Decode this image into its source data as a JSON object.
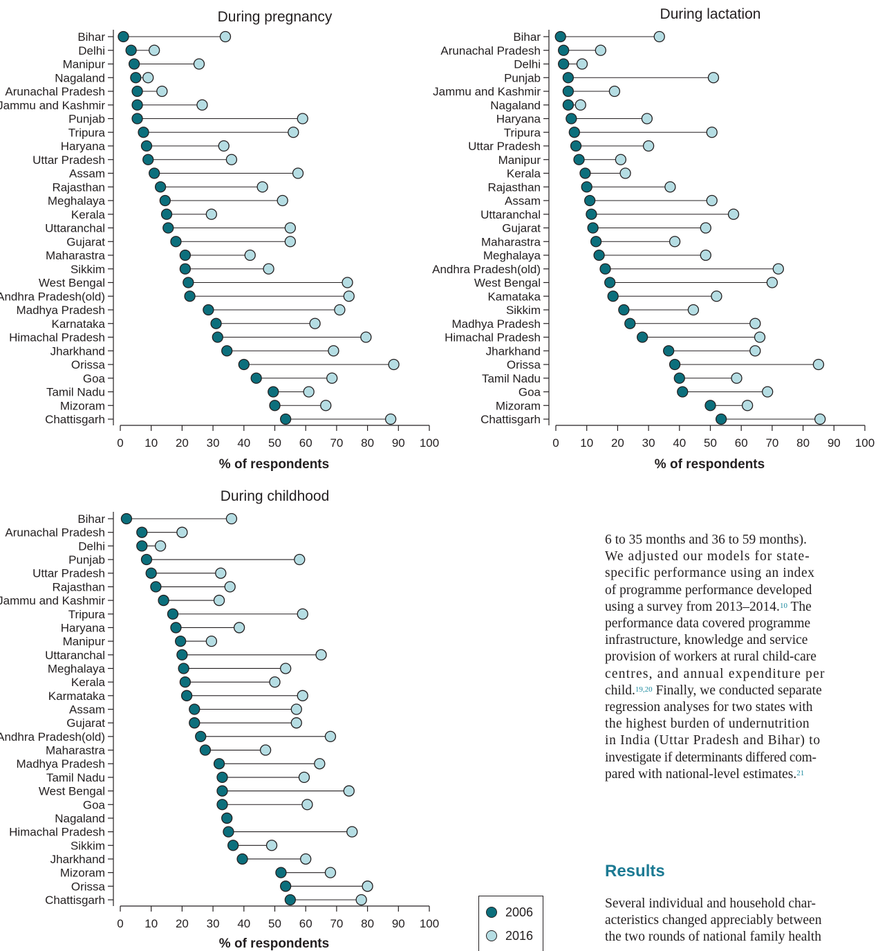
{
  "colors": {
    "y2006": "#0c6f7c",
    "y2016": "#b5dde3",
    "line": "#231f20",
    "heading": "#1c7a93"
  },
  "legend": {
    "items": [
      {
        "label": "2006",
        "color": "#0c6f7c"
      },
      {
        "label": "2016",
        "color": "#b5dde3"
      }
    ]
  },
  "chart_data": [
    {
      "type": "dumbbell",
      "title": "During pregnancy",
      "xlabel": "% of respondents",
      "xlim": [
        0,
        100
      ],
      "xticks": [
        0,
        10,
        20,
        30,
        40,
        50,
        60,
        70,
        80,
        90,
        100
      ],
      "categories": [
        "Bihar",
        "Delhi",
        "Manipur",
        "Nagaland",
        "Arunachal Pradesh",
        "Jammu and Kashmir",
        "Punjab",
        "Tripura",
        "Haryana",
        "Uttar Pradesh",
        "Assam",
        "Rajasthan",
        "Meghalaya",
        "Kerala",
        "Uttaranchal",
        "Gujarat",
        "Maharastra",
        "Sikkim",
        "West Bengal",
        "Andhra Pradesh(old)",
        "Madhya Pradesh",
        "Karnataka",
        "Himachal Pradesh",
        "Jharkhand",
        "Orissa",
        "Goa",
        "Tamil Nadu",
        "Mizoram",
        "Chattisgarh"
      ],
      "series": [
        {
          "name": "2006",
          "values": [
            1,
            3.5,
            4.5,
            5,
            5.5,
            5.5,
            5.5,
            7.5,
            8.5,
            9,
            11,
            13,
            14.5,
            15,
            15.5,
            18,
            21,
            21,
            22,
            22.5,
            28.5,
            31,
            31.5,
            34.5,
            40,
            44,
            49.5,
            50,
            53.5
          ]
        },
        {
          "name": "2016",
          "values": [
            34,
            11,
            25.5,
            9,
            13.5,
            26.5,
            59,
            56,
            33.5,
            36,
            57.5,
            46,
            52.5,
            29.5,
            55,
            55,
            42,
            48,
            73.5,
            74,
            71,
            63,
            79.5,
            69,
            88.5,
            68.5,
            61,
            66.5,
            87.5
          ]
        }
      ]
    },
    {
      "type": "dumbbell",
      "title": "During lactation",
      "xlabel": "% of respondents",
      "xlim": [
        0,
        100
      ],
      "xticks": [
        0,
        10,
        20,
        30,
        40,
        50,
        60,
        70,
        80,
        90,
        100
      ],
      "categories": [
        "Bihar",
        "Arunachal Pradesh",
        "Delhi",
        "Punjab",
        "Jammu and Kashmir",
        "Nagaland",
        "Haryana",
        "Tripura",
        "Uttar Pradesh",
        "Manipur",
        "Kerala",
        "Rajasthan",
        "Assam",
        "Uttaranchal",
        "Gujarat",
        "Maharastra",
        "Meghalaya",
        "Andhra Pradesh(old)",
        "West Bengal",
        "Kamataka",
        "Sikkim",
        "Madhya Pradesh",
        "Himachal Pradesh",
        "Jharkhand",
        "Orissa",
        "Tamil Nadu",
        "Goa",
        "Mizoram",
        "Chattisgarh"
      ],
      "series": [
        {
          "name": "2006",
          "values": [
            1.5,
            2.5,
            2.5,
            4,
            4,
            4,
            5,
            6,
            6.5,
            7.5,
            9.5,
            10,
            11,
            11.5,
            12,
            13,
            14,
            16,
            17.5,
            18.5,
            22,
            24,
            28,
            36.5,
            38.5,
            40,
            41,
            50,
            53.5
          ]
        },
        {
          "name": "2016",
          "values": [
            33.5,
            14.5,
            8.5,
            51,
            19,
            8,
            29.5,
            50.5,
            30,
            21,
            22.5,
            37,
            50.5,
            57.5,
            48.5,
            38.5,
            48.5,
            72,
            70,
            52,
            44.5,
            64.5,
            66,
            64.5,
            85,
            58.5,
            68.5,
            62,
            85.5
          ]
        }
      ]
    },
    {
      "type": "dumbbell",
      "title": "During childhood",
      "xlabel": "% of respondents",
      "xlim": [
        0,
        100
      ],
      "xticks": [
        0,
        10,
        20,
        30,
        40,
        50,
        60,
        70,
        80,
        90,
        100
      ],
      "categories": [
        "Bihar",
        "Arunachal  Pradesh",
        "Delhi",
        "Punjab",
        "Uttar Pradesh",
        "Rajasthan",
        "Jammu and Kashmir",
        "Tripura",
        "Haryana",
        "Manipur",
        "Uttaranchal",
        "Meghalaya",
        "Kerala",
        "Karmataka",
        "Assam",
        "Gujarat",
        "Andhra Pradesh(old)",
        "Maharastra",
        "Madhya Pradesh",
        "Tamil Nadu",
        "West Bengal",
        "Goa",
        "Nagaland",
        "Himachal Pradesh",
        "Sikkim",
        "Jharkhand",
        "Mizoram",
        "Orissa",
        "Chattisgarh"
      ],
      "series": [
        {
          "name": "2006",
          "values": [
            2,
            7,
            7,
            8.5,
            10,
            11.5,
            14,
            17,
            18,
            19.5,
            20,
            20.5,
            21,
            21.5,
            24,
            24,
            26,
            27.5,
            32,
            33,
            33,
            33,
            34.5,
            35,
            36.5,
            39.5,
            52,
            53.5,
            55
          ]
        },
        {
          "name": "2016",
          "values": [
            36,
            20,
            13,
            58,
            32.5,
            35.5,
            32,
            59,
            38.5,
            29.5,
            65,
            53.5,
            50,
            59,
            57,
            57,
            68,
            47,
            64.5,
            59.5,
            74,
            60.5,
            null,
            75,
            49,
            60,
            68,
            80,
            78
          ]
        }
      ]
    }
  ],
  "body_text": {
    "lines": [
      "6 to 35 months and 36 to 59 months).",
      "We adjusted our models for state-",
      "specific performance using an index",
      "of programme performance developed",
      "using a survey from 2013–2014.",
      "performance data covered programme",
      "infrastructure, knowledge and service",
      "provision of workers at rural child-care",
      "centres, and annual expenditure per",
      "child.",
      "regression analyses for two states with",
      "the highest burden of undernutrition",
      "in India (Uttar Pradesh and Bihar) to",
      "investigate if determinants differed com-",
      "pared with national-level estimates."
    ],
    "line5_tail": " The",
    "line10_tail": " Finally, we conducted separate",
    "ref_10": "10",
    "ref_19_20": "19,20",
    "ref_21": "21"
  },
  "results": {
    "heading": "Results",
    "lines": [
      "Several individual and household char-",
      "acteristics changed appreciably between",
      "the two rounds of national family health"
    ]
  }
}
